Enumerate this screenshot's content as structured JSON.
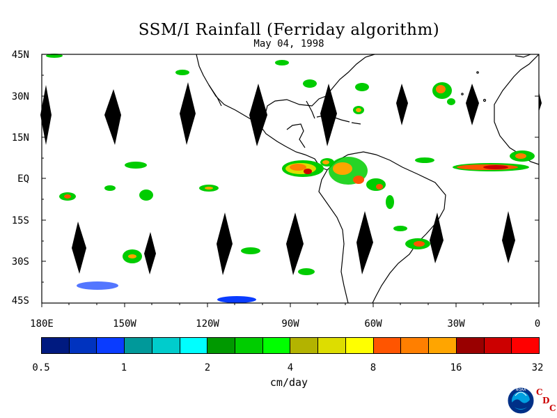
{
  "title": "SSM/I Rainfall (Ferriday algorithm)",
  "date": "May 04, 1998",
  "map": {
    "lat_labels": [
      "45N",
      "30N",
      "15N",
      "EQ",
      "15S",
      "30S",
      "45S"
    ],
    "lon_labels": [
      "180E",
      "150W",
      "120W",
      "90W",
      "60W",
      "30W",
      "0"
    ],
    "lat_range": [
      -45,
      45
    ],
    "lon_range": [
      -180,
      0
    ],
    "missing_swath_color": "#000000",
    "coastline_color": "#000000"
  },
  "colorbar": {
    "colors": [
      "#001a80",
      "#0033bf",
      "#0a3cff",
      "#00999a",
      "#00cccc",
      "#00ffff",
      "#009900",
      "#00cc00",
      "#00ff00",
      "#b3b300",
      "#dddd00",
      "#ffff00",
      "#ff5500",
      "#ff7f00",
      "#ffa500",
      "#990000",
      "#cc0000",
      "#ff0000"
    ],
    "tick_labels": [
      "0.5",
      "1",
      "2",
      "4",
      "8",
      "16",
      "32"
    ],
    "unit": "cm/day"
  },
  "logos": {
    "noaa_text": "NOAA",
    "cdc": [
      "C",
      "D",
      "C"
    ]
  }
}
